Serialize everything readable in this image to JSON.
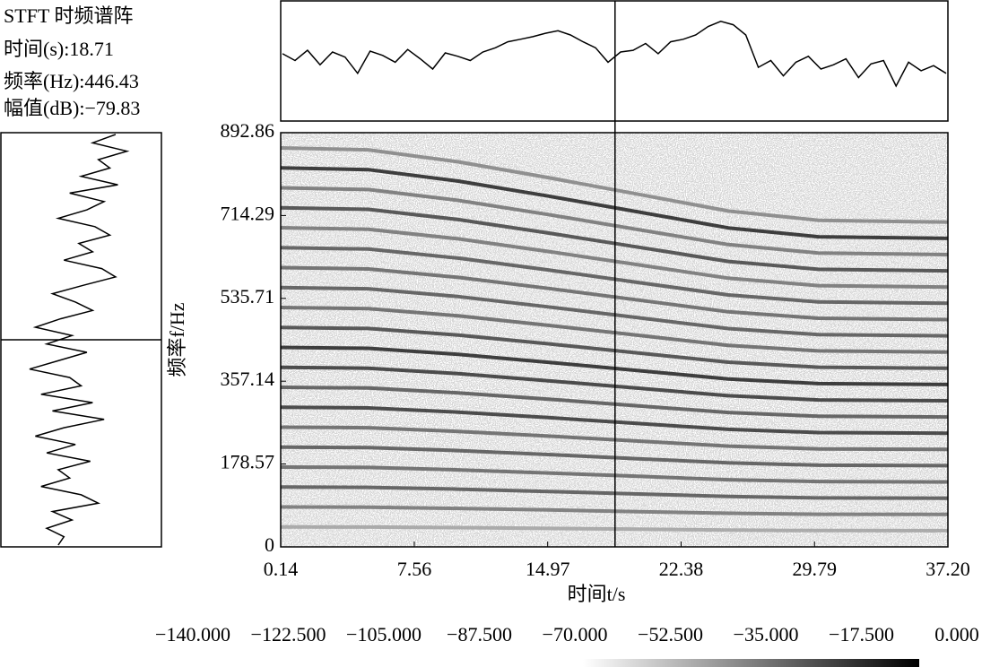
{
  "title": "STFT 时频谱阵",
  "readout": [
    {
      "label": "时间(s):",
      "value": 18.71
    },
    {
      "label": "频率(Hz):",
      "value": 446.43
    },
    {
      "label": "幅值(dB):",
      "value": -79.83,
      "value_label": "−79.83"
    }
  ],
  "chart_data": [
    {
      "type": "spectrogram",
      "xlabel": "时间t/s",
      "ylabel": "频率f/Hz",
      "x": [
        0.14,
        5,
        10,
        15,
        20,
        25,
        30,
        37.2
      ],
      "series": [
        {
          "color": "#a0a0a0",
          "values": [
            43,
            42.8,
            41.5,
            39.8,
            38,
            36.2,
            35.2,
            35
          ]
        },
        {
          "color": "#707070",
          "values": [
            86,
            85.6,
            83,
            79.6,
            76,
            72.4,
            70.4,
            70
          ]
        },
        {
          "color": "#505050",
          "values": [
            129,
            128.4,
            124.5,
            119.4,
            114,
            108.6,
            105.6,
            105
          ]
        },
        {
          "color": "#606060",
          "values": [
            172,
            171.2,
            166,
            159.2,
            152,
            144.8,
            140.8,
            140
          ]
        },
        {
          "color": "#505050",
          "values": [
            215,
            214,
            207.5,
            199,
            190,
            181,
            176,
            175
          ]
        },
        {
          "color": "#606060",
          "values": [
            258,
            256.8,
            249,
            238.8,
            228,
            217.2,
            211.2,
            210
          ]
        },
        {
          "color": "#303030",
          "values": [
            301,
            299.6,
            290.5,
            278.6,
            266,
            253.4,
            246.4,
            245
          ]
        },
        {
          "color": "#505050",
          "values": [
            344,
            342.4,
            332,
            318.4,
            304,
            289.6,
            281.6,
            280
          ]
        },
        {
          "color": "#303030",
          "values": [
            387,
            385.2,
            373.5,
            358.2,
            342,
            325.8,
            316.8,
            315
          ]
        },
        {
          "color": "#202020",
          "values": [
            430,
            428,
            415,
            398,
            380,
            362,
            352,
            350
          ]
        },
        {
          "color": "#404040",
          "values": [
            473,
            470.8,
            456.5,
            437.8,
            418,
            398.2,
            387.2,
            385
          ]
        },
        {
          "color": "#606060",
          "values": [
            516,
            513.6,
            498,
            477.6,
            456,
            434.4,
            422.4,
            420
          ]
        },
        {
          "color": "#505050",
          "values": [
            559,
            556.4,
            539.5,
            517.4,
            494,
            470.6,
            457.6,
            455
          ]
        },
        {
          "color": "#606060",
          "values": [
            602,
            599.2,
            581,
            557.2,
            532,
            506.8,
            492.8,
            490
          ]
        },
        {
          "color": "#505050",
          "values": [
            645,
            642,
            622.5,
            597,
            570,
            543,
            528,
            525
          ]
        },
        {
          "color": "#707070",
          "values": [
            688,
            684.8,
            664,
            636.8,
            608,
            579.2,
            563.2,
            560
          ]
        },
        {
          "color": "#404040",
          "values": [
            731,
            727.6,
            705.5,
            676.6,
            646,
            615.4,
            598.4,
            595
          ]
        },
        {
          "color": "#707070",
          "values": [
            774,
            770.4,
            747,
            716.4,
            684,
            651.6,
            633.6,
            630
          ]
        },
        {
          "color": "#202020",
          "values": [
            817,
            813.2,
            788.5,
            756.2,
            722,
            687.6,
            668.4,
            665
          ]
        },
        {
          "color": "#808080",
          "values": [
            860,
            856,
            830,
            796,
            760,
            724,
            704,
            700
          ]
        }
      ],
      "xlim": [
        0.14,
        37.2
      ],
      "ylim": [
        0,
        892.86
      ],
      "xticks": [
        0.14,
        7.56,
        14.97,
        22.38,
        29.79,
        {
          "value": 37.2,
          "label": "37.20"
        }
      ],
      "yticks": [
        0,
        178.57,
        357.14,
        535.71,
        714.29,
        892.86
      ],
      "colorbar": {
        "colors": [
          "#ffffff",
          "#000000"
        ],
        "ticks": [
          {
            "value": -140,
            "label": "−140.000"
          },
          {
            "value": -122.5,
            "label": "−122.500"
          },
          {
            "value": -105,
            "label": "−105.000"
          },
          {
            "value": -87.5,
            "label": "−87.500"
          },
          {
            "value": -70,
            "label": "−70.000"
          },
          {
            "value": -52.5,
            "label": "−52.500"
          },
          {
            "value": -35,
            "label": "−35.000"
          },
          {
            "value": -17.5,
            "label": "−17.500"
          },
          {
            "value": 0,
            "label": "0.000"
          }
        ]
      }
    },
    {
      "type": "trace",
      "orient": "horizontal",
      "color": "#000000",
      "ylim": [
        -140,
        0
      ],
      "values": [
        -62,
        -70,
        -58,
        -75,
        -60,
        -66,
        -85,
        -59,
        -64,
        -72,
        -57,
        -68,
        -80,
        -61,
        -65,
        -70,
        -60,
        -55,
        -48,
        -45,
        -42,
        -38,
        -35,
        -40,
        -48,
        -55,
        -72,
        -60,
        -58,
        -50,
        -62,
        -48,
        -45,
        -40,
        -30,
        -24,
        -28,
        -40,
        -78,
        -70,
        -88,
        -72,
        -65,
        -80,
        -75,
        -68,
        -90,
        -74,
        -70,
        -100,
        -72,
        -82,
        -76,
        -85
      ]
    },
    {
      "type": "trace",
      "orient": "vertical",
      "color": "#000000",
      "ylim": [
        -140,
        0
      ],
      "values": [
        -40,
        -60,
        -30,
        -55,
        -45,
        -70,
        -38,
        -80,
        -50,
        -65,
        -90,
        -58,
        -45,
        -72,
        -60,
        -85,
        -52,
        -40,
        -68,
        -95,
        -75,
        -60,
        -88,
        -110,
        -78,
        -100,
        -65,
        -90,
        -115,
        -80,
        -70,
        -105,
        -60,
        -95,
        -50,
        -85,
        -110,
        -75,
        -100,
        -62,
        -90,
        -80,
        -105,
        -70,
        -55,
        -95,
        -78,
        -100,
        -85,
        -90
      ]
    }
  ]
}
